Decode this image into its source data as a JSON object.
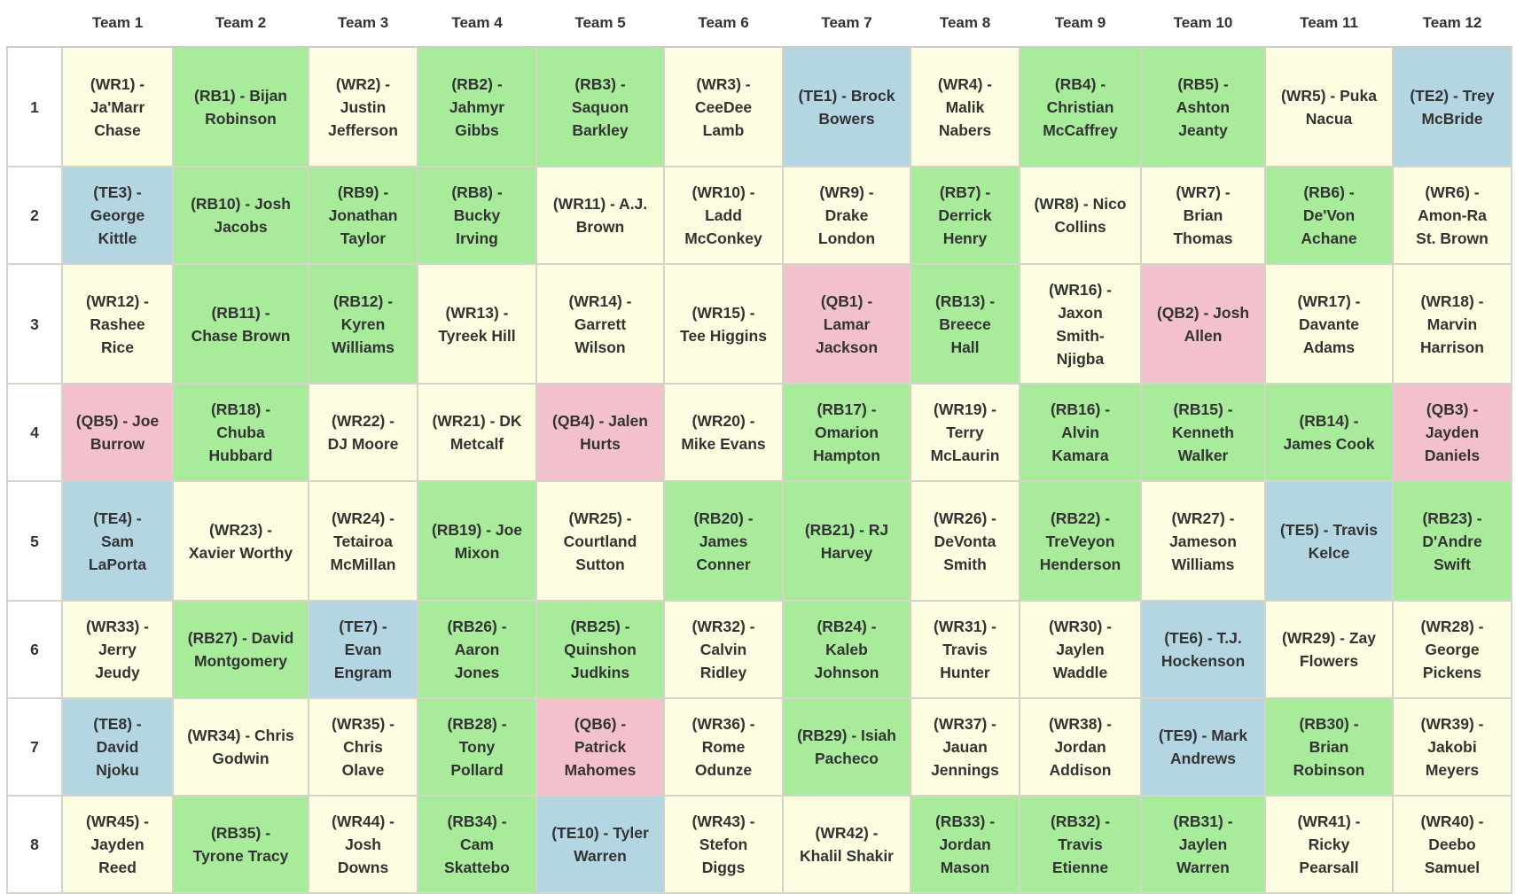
{
  "table": {
    "headers": [
      "Team 1",
      "Team 2",
      "Team 3",
      "Team 4",
      "Team 5",
      "Team 6",
      "Team 7",
      "Team 8",
      "Team 9",
      "Team 10",
      "Team 11",
      "Team 12"
    ],
    "position_colors": {
      "WR": "#fdfde1",
      "RB": "#a7eb9b",
      "TE": "#b4d6e3",
      "QB": "#f3c1cb"
    },
    "rows": [
      {
        "round": "1",
        "picks": [
          "(WR1) - Ja'Marr Chase",
          "(RB1) - Bijan Robinson",
          "(WR2) - Justin Jefferson",
          "(RB2) - Jahmyr Gibbs",
          "(RB3) - Saquon Barkley",
          "(WR3) - CeeDee Lamb",
          "(TE1) - Brock Bowers",
          "(WR4) - Malik Nabers",
          "(RB4) - Christian McCaffrey",
          "(RB5) - Ashton Jeanty",
          "(WR5) - Puka Nacua",
          "(TE2) - Trey McBride"
        ]
      },
      {
        "round": "2",
        "picks": [
          "(TE3) - George Kittle",
          "(RB10) - Josh Jacobs",
          "(RB9) - Jonathan Taylor",
          "(RB8) - Bucky Irving",
          "(WR11) - A.J. Brown",
          "(WR10) - Ladd McConkey",
          "(WR9) - Drake London",
          "(RB7) - Derrick Henry",
          "(WR8) - Nico Collins",
          "(WR7) - Brian Thomas",
          "(RB6) - De'Von Achane",
          "(WR6) - Amon-Ra St. Brown"
        ]
      },
      {
        "round": "3",
        "picks": [
          "(WR12) - Rashee Rice",
          "(RB11) - Chase Brown",
          "(RB12) - Kyren Williams",
          "(WR13) - Tyreek Hill",
          "(WR14) - Garrett Wilson",
          "(WR15) - Tee Higgins",
          "(QB1) - Lamar Jackson",
          "(RB13) - Breece Hall",
          "(WR16) - Jaxon Smith-Njigba",
          "(QB2) - Josh Allen",
          "(WR17) - Davante Adams",
          "(WR18) - Marvin Harrison"
        ]
      },
      {
        "round": "4",
        "picks": [
          "(QB5) - Joe Burrow",
          "(RB18) - Chuba Hubbard",
          "(WR22) - DJ Moore",
          "(WR21) - DK Metcalf",
          "(QB4) - Jalen Hurts",
          "(WR20) - Mike Evans",
          "(RB17) - Omarion Hampton",
          "(WR19) - Terry McLaurin",
          "(RB16) - Alvin Kamara",
          "(RB15) - Kenneth Walker",
          "(RB14) - James Cook",
          "(QB3) - Jayden Daniels"
        ]
      },
      {
        "round": "5",
        "picks": [
          "(TE4) - Sam LaPorta",
          "(WR23) - Xavier Worthy",
          "(WR24) - Tetairoa McMillan",
          "(RB19) - Joe Mixon",
          "(WR25) - Courtland Sutton",
          "(RB20) - James Conner",
          "(RB21) - RJ Harvey",
          "(WR26) - DeVonta Smith",
          "(RB22) - TreVeyon Henderson",
          "(WR27) - Jameson Williams",
          "(TE5) - Travis Kelce",
          "(RB23) - D'Andre Swift"
        ]
      },
      {
        "round": "6",
        "picks": [
          "(WR33) - Jerry Jeudy",
          "(RB27) - David Montgomery",
          "(TE7) - Evan Engram",
          "(RB26) - Aaron Jones",
          "(RB25) - Quinshon Judkins",
          "(WR32) - Calvin Ridley",
          "(RB24) - Kaleb Johnson",
          "(WR31) - Travis Hunter",
          "(WR30) - Jaylen Waddle",
          "(TE6) - T.J. Hockenson",
          "(WR29) - Zay Flowers",
          "(WR28) - George Pickens"
        ]
      },
      {
        "round": "7",
        "picks": [
          "(TE8) - David Njoku",
          "(WR34) - Chris Godwin",
          "(WR35) - Chris Olave",
          "(RB28) - Tony Pollard",
          "(QB6) - Patrick Mahomes",
          "(WR36) - Rome Odunze",
          "(RB29) - Isiah Pacheco",
          "(WR37) - Jauan Jennings",
          "(WR38) - Jordan Addison",
          "(TE9) - Mark Andrews",
          "(RB30) - Brian Robinson",
          "(WR39) - Jakobi Meyers"
        ]
      },
      {
        "round": "8",
        "picks": [
          "(WR45) - Jayden Reed",
          "(RB35) - Tyrone Tracy",
          "(WR44) - Josh Downs",
          "(RB34) - Cam Skattebo",
          "(TE10) - Tyler Warren",
          "(WR43) - Stefon Diggs",
          "(WR42) - Khalil Shakir",
          "(RB33) - Jordan Mason",
          "(RB32) - Travis Etienne",
          "(RB31) - Jaylen Warren",
          "(WR41) - Ricky Pearsall",
          "(WR40) - Deebo Samuel"
        ]
      }
    ]
  }
}
